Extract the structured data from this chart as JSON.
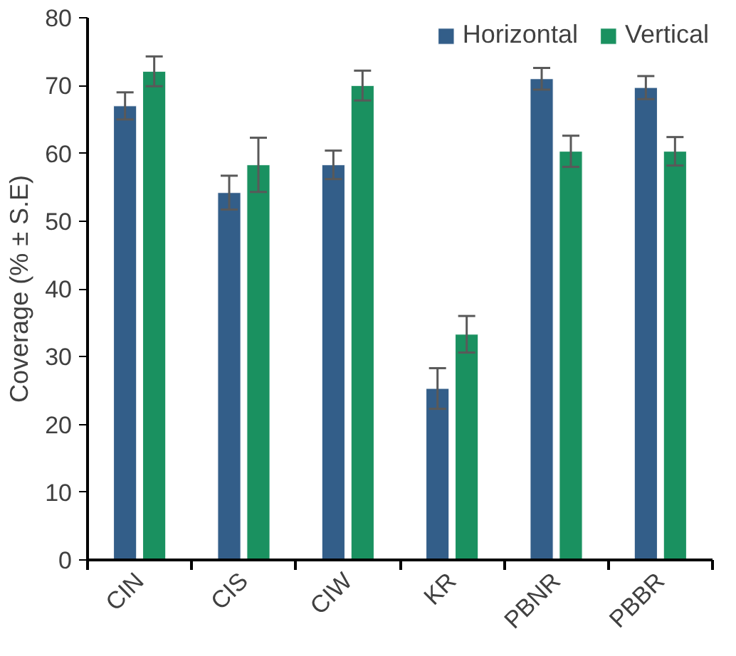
{
  "chart_data": {
    "type": "bar",
    "ylabel": "Coverage (% ± S.E)",
    "categories": [
      "CIN",
      "CIS",
      "CIW",
      "KR",
      "PBNR",
      "PBBR"
    ],
    "series": [
      {
        "name": "Horizontal",
        "color": "#335e89",
        "values": [
          67,
          54.2,
          58.3,
          25.3,
          71,
          69.7
        ],
        "errors": [
          2,
          2.5,
          2.1,
          3,
          1.6,
          1.7
        ]
      },
      {
        "name": "Vertical",
        "color": "#1a9160",
        "values": [
          72.1,
          58.3,
          70,
          33.3,
          60.3,
          60.3
        ],
        "errors": [
          2.2,
          4,
          2.2,
          2.7,
          2.3,
          2.1
        ]
      }
    ],
    "ylim": [
      0,
      80
    ],
    "yticks": [
      0,
      10,
      20,
      30,
      40,
      50,
      60,
      70,
      80
    ],
    "grid": false,
    "legend": "top right"
  }
}
